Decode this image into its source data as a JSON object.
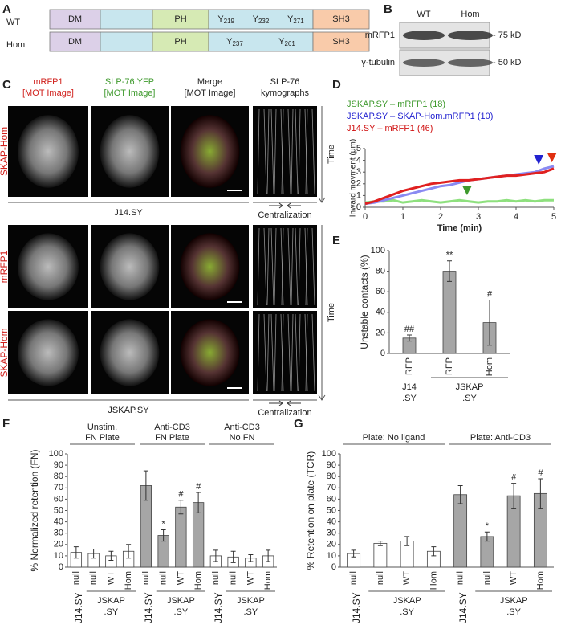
{
  "panel_labels": [
    "A",
    "B",
    "C",
    "D",
    "E",
    "F",
    "G"
  ],
  "panel_a": {
    "rows": [
      {
        "label": "WT",
        "domains": [
          "DM",
          "PH",
          "SH3"
        ],
        "tyrosines": [
          {
            "aa": "Y",
            "pos": "219"
          },
          {
            "aa": "Y",
            "pos": "232"
          },
          {
            "aa": "Y",
            "pos": "271"
          }
        ]
      },
      {
        "label": "Hom",
        "domains": [
          "DM",
          "PH",
          "SH3"
        ],
        "tyrosines": [
          {
            "aa": "Y",
            "pos": "237"
          },
          {
            "aa": "Y",
            "pos": "261"
          }
        ]
      }
    ]
  },
  "panel_b": {
    "lanes": [
      "WT",
      "Hom"
    ],
    "blots": [
      {
        "label": "mRFP1",
        "marker": "- 75 kD"
      },
      {
        "label": "γ-tubulin",
        "marker": "- 50 kD"
      }
    ]
  },
  "panel_c": {
    "columns": [
      [
        "mRFP1",
        "[MOT Image]"
      ],
      [
        "SLP-76.YFP",
        "[MOT Image]"
      ],
      [
        "Merge",
        "[MOT Image]"
      ],
      [
        "SLP-76",
        "kymographs"
      ]
    ],
    "blocks": [
      {
        "rows": [
          "SKAP-Hom"
        ],
        "cell_line": "J14.SY",
        "time": "Time",
        "direction": "Centralization"
      },
      {
        "rows": [
          "mRFP1",
          "SKAP-Hom"
        ],
        "cell_line": "JSKAP.SY",
        "time": "Time",
        "direction": "Centralization"
      }
    ]
  },
  "chart_data": [
    {
      "type": "line",
      "x_label": "Time (min)",
      "y_label": "Inward movment (μm)",
      "x": [
        0,
        0.25,
        0.5,
        0.75,
        1,
        1.25,
        1.5,
        1.75,
        2,
        2.25,
        2.5,
        2.75,
        3,
        3.25,
        3.5,
        3.75,
        4,
        4.25,
        4.5,
        4.75,
        5
      ],
      "series": [
        {
          "name": "JSKAP.SY – mRFP1 (18)",
          "color": "#8ee07e",
          "text_color": "#3f9a2e",
          "values": [
            0.4,
            0.5,
            0.5,
            0.6,
            0.4,
            0.5,
            0.6,
            0.5,
            0.4,
            0.5,
            0.6,
            0.5,
            0.4,
            0.5,
            0.5,
            0.6,
            0.5,
            0.6,
            0.5,
            0.6,
            0.6
          ]
        },
        {
          "name": "JSKAP.SY – SKAP-Hom.mRFP1 (10)",
          "color": "#8a8af2",
          "text_color": "#2222d0",
          "values": [
            0.3,
            0.4,
            0.6,
            0.8,
            1.0,
            1.2,
            1.4,
            1.6,
            1.8,
            1.9,
            2.1,
            2.3,
            2.4,
            2.5,
            2.6,
            2.7,
            2.8,
            2.9,
            3.0,
            3.3,
            3.5
          ]
        },
        {
          "name": "J14.SY – mRFP1 (46)",
          "color": "#e02020",
          "text_color": "#d01010",
          "values": [
            0.3,
            0.5,
            0.8,
            1.1,
            1.4,
            1.6,
            1.8,
            2.0,
            2.1,
            2.2,
            2.3,
            2.3,
            2.4,
            2.5,
            2.6,
            2.7,
            2.7,
            2.8,
            2.9,
            3.0,
            3.3
          ]
        }
      ],
      "arrowheads": [
        {
          "x": 2.7,
          "y": 1.3,
          "color": "#3f9a2e"
        },
        {
          "x": 4.6,
          "y": 3.9,
          "color": "#2222d0"
        },
        {
          "x": 4.95,
          "y": 4.1,
          "color": "#e03010"
        }
      ],
      "xlim": [
        0,
        5
      ],
      "xticks": [
        0,
        1,
        2,
        3,
        4,
        5
      ],
      "ylim": [
        0,
        5
      ],
      "yticks": [
        0,
        1,
        2,
        3,
        4,
        5
      ]
    },
    {
      "type": "bar",
      "y_label": "Unstable contacts (%)",
      "categories": [
        "RFP",
        "RFP",
        "Hom"
      ],
      "values": [
        15,
        80,
        30
      ],
      "errors": [
        3,
        10,
        22
      ],
      "bar_colors": [
        "#a6a6a6",
        "#a6a6a6",
        "#a6a6a6"
      ],
      "annotations": [
        "##",
        "**",
        "#"
      ],
      "cell_groups": [
        {
          "label": [
            "J14",
            ".SY"
          ],
          "start": 0,
          "end": 0
        },
        {
          "label": [
            "JSKAP",
            ".SY"
          ],
          "start": 1,
          "end": 2
        }
      ],
      "ylim": [
        0,
        100
      ],
      "yticks": [
        0,
        20,
        40,
        60,
        80,
        100
      ]
    },
    {
      "type": "bar",
      "y_label": "% Normalized retention (FN)",
      "groups": [
        {
          "label": [
            "Unstim.",
            "FN Plate"
          ],
          "start": 0,
          "end": 3
        },
        {
          "label": [
            "Anti-CD3",
            "FN Plate"
          ],
          "start": 4,
          "end": 7
        },
        {
          "label": [
            "Anti-CD3",
            "No FN"
          ],
          "start": 8,
          "end": 11
        }
      ],
      "categories": [
        "null",
        "null",
        "WT",
        "Hom",
        "null",
        "null",
        "WT",
        "Hom",
        "null",
        "null",
        "WT",
        "Hom"
      ],
      "values": [
        13,
        12,
        10,
        14,
        72,
        28,
        53,
        57,
        10,
        9,
        8,
        10
      ],
      "errors": [
        5,
        4,
        4,
        6,
        13,
        5,
        6,
        9,
        5,
        5,
        3,
        5
      ],
      "bar_colors": [
        "#ffffff",
        "#ffffff",
        "#ffffff",
        "#ffffff",
        "#a6a6a6",
        "#a6a6a6",
        "#a6a6a6",
        "#a6a6a6",
        "#ffffff",
        "#ffffff",
        "#ffffff",
        "#ffffff"
      ],
      "annotations": [
        null,
        null,
        null,
        null,
        null,
        "*",
        "#",
        "#",
        null,
        null,
        null,
        null
      ],
      "cell_groups": [
        {
          "label": "J14.SY",
          "start": 0,
          "end": 0
        },
        {
          "label": [
            "JSKAP",
            ".SY"
          ],
          "start": 1,
          "end": 3
        },
        {
          "label": "J14.SY",
          "start": 4,
          "end": 4
        },
        {
          "label": [
            "JSKAP",
            ".SY"
          ],
          "start": 5,
          "end": 7
        },
        {
          "label": "J14.SY",
          "start": 8,
          "end": 8
        },
        {
          "label": [
            "JSKAP",
            ".SY"
          ],
          "start": 9,
          "end": 11
        }
      ],
      "ylim": [
        0,
        100
      ],
      "yticks": [
        0,
        10,
        20,
        30,
        40,
        50,
        60,
        70,
        80,
        90,
        100
      ]
    },
    {
      "type": "bar",
      "y_label": "% Retention on plate (TCR)",
      "groups": [
        {
          "label": [
            "Plate: No ligand"
          ],
          "start": 0,
          "end": 3
        },
        {
          "label": [
            "Plate: Anti-CD3"
          ],
          "start": 4,
          "end": 7
        }
      ],
      "categories": [
        "null",
        "null",
        "WT",
        "Hom",
        "null",
        "null",
        "WT",
        "Hom"
      ],
      "values": [
        12,
        21,
        23,
        14,
        64,
        27,
        63,
        65
      ],
      "errors": [
        3,
        2,
        4,
        4,
        8,
        4,
        11,
        13
      ],
      "bar_colors": [
        "#ffffff",
        "#ffffff",
        "#ffffff",
        "#ffffff",
        "#a6a6a6",
        "#a6a6a6",
        "#a6a6a6",
        "#a6a6a6"
      ],
      "annotations": [
        null,
        null,
        null,
        null,
        null,
        "*",
        "#",
        "#"
      ],
      "cell_groups": [
        {
          "label": "J14.SY",
          "start": 0,
          "end": 0
        },
        {
          "label": [
            "JSKAP",
            ".SY"
          ],
          "start": 1,
          "end": 3
        },
        {
          "label": "J14.SY",
          "start": 4,
          "end": 4
        },
        {
          "label": [
            "JSKAP",
            ".SY"
          ],
          "start": 5,
          "end": 7
        }
      ],
      "ylim": [
        0,
        100
      ],
      "yticks": [
        0,
        10,
        20,
        30,
        40,
        50,
        60,
        70,
        80,
        90,
        100
      ]
    }
  ]
}
